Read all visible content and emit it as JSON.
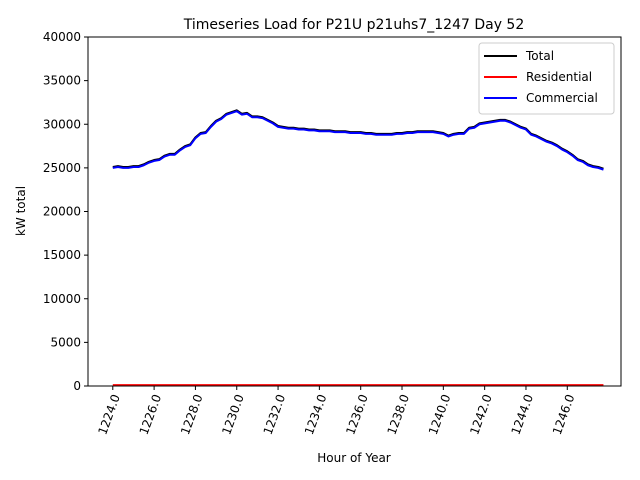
{
  "chart_data": {
    "type": "line",
    "title": "Timeseries Load for P21U p21uhs7_1247  Day 52",
    "xlabel": "Hour of Year",
    "ylabel": "kW total",
    "xlim": [
      1222.8,
      1248.6
    ],
    "ylim": [
      0,
      40000
    ],
    "xticks": [
      1224,
      1226,
      1228,
      1230,
      1232,
      1234,
      1236,
      1238,
      1240,
      1242,
      1244,
      1246
    ],
    "xtick_labels": [
      "1224.0",
      "1226.0",
      "1228.0",
      "1230.0",
      "1232.0",
      "1234.0",
      "1236.0",
      "1238.0",
      "1240.0",
      "1242.0",
      "1244.0",
      "1246.0"
    ],
    "yticks": [
      0,
      5000,
      10000,
      15000,
      20000,
      25000,
      30000,
      35000,
      40000
    ],
    "ytick_labels": [
      "0",
      "5000",
      "10000",
      "15000",
      "20000",
      "25000",
      "30000",
      "35000",
      "40000"
    ],
    "legend_position": "upper-right",
    "x": [
      1224.0,
      1224.25,
      1224.5,
      1224.75,
      1225.0,
      1225.25,
      1225.5,
      1225.75,
      1226.0,
      1226.25,
      1226.5,
      1226.75,
      1227.0,
      1227.25,
      1227.5,
      1227.75,
      1228.0,
      1228.25,
      1228.5,
      1228.75,
      1229.0,
      1229.25,
      1229.5,
      1229.75,
      1230.0,
      1230.25,
      1230.5,
      1230.75,
      1231.0,
      1231.25,
      1231.5,
      1231.75,
      1232.0,
      1232.25,
      1232.5,
      1232.75,
      1233.0,
      1233.25,
      1233.5,
      1233.75,
      1234.0,
      1234.25,
      1234.5,
      1234.75,
      1235.0,
      1235.25,
      1235.5,
      1235.75,
      1236.0,
      1236.25,
      1236.5,
      1236.75,
      1237.0,
      1237.25,
      1237.5,
      1237.75,
      1238.0,
      1238.25,
      1238.5,
      1238.75,
      1239.0,
      1239.25,
      1239.5,
      1239.75,
      1240.0,
      1240.25,
      1240.5,
      1240.75,
      1241.0,
      1241.25,
      1241.5,
      1241.75,
      1242.0,
      1242.25,
      1242.5,
      1242.75,
      1243.0,
      1243.25,
      1243.5,
      1243.75,
      1244.0,
      1244.25,
      1244.5,
      1244.75,
      1245.0,
      1245.25,
      1245.5,
      1245.75,
      1246.0,
      1246.25,
      1246.5,
      1246.75,
      1247.0,
      1247.25,
      1247.5,
      1247.75
    ],
    "series": [
      {
        "name": "Total",
        "color": "#000000",
        "values": [
          25100,
          25200,
          25100,
          25100,
          25200,
          25200,
          25400,
          25700,
          25900,
          26000,
          26400,
          26600,
          26600,
          27100,
          27500,
          27700,
          28500,
          29000,
          29100,
          29800,
          30400,
          30700,
          31200,
          31400,
          31600,
          31200,
          31300,
          30900,
          30900,
          30800,
          30500,
          30200,
          29800,
          29700,
          29600,
          29600,
          29500,
          29500,
          29400,
          29400,
          29300,
          29300,
          29300,
          29200,
          29200,
          29200,
          29100,
          29100,
          29100,
          29000,
          29000,
          28900,
          28900,
          28900,
          28900,
          29000,
          29000,
          29100,
          29100,
          29200,
          29200,
          29200,
          29200,
          29100,
          29000,
          28700,
          28900,
          29000,
          29000,
          29600,
          29700,
          30100,
          30200,
          30300,
          30400,
          30500,
          30500,
          30300,
          30000,
          29700,
          29500,
          28900,
          28700,
          28400,
          28100,
          27900,
          27600,
          27200,
          26900,
          26500,
          26000,
          25800,
          25400,
          25200,
          25100,
          24900
        ]
      },
      {
        "name": "Residential",
        "color": "#ff0000",
        "values": [
          100,
          100,
          100,
          100,
          100,
          100,
          100,
          100,
          100,
          100,
          100,
          100,
          100,
          100,
          100,
          100,
          100,
          100,
          100,
          100,
          100,
          100,
          100,
          100,
          100,
          100,
          100,
          100,
          100,
          100,
          100,
          100,
          100,
          100,
          100,
          100,
          100,
          100,
          100,
          100,
          100,
          100,
          100,
          100,
          100,
          100,
          100,
          100,
          100,
          100,
          100,
          100,
          100,
          100,
          100,
          100,
          100,
          100,
          100,
          100,
          100,
          100,
          100,
          100,
          100,
          100,
          100,
          100,
          100,
          100,
          100,
          100,
          100,
          100,
          100,
          100,
          100,
          100,
          100,
          100,
          100,
          100,
          100,
          100,
          100,
          100,
          100,
          100,
          100,
          100,
          100,
          100,
          100,
          100,
          100,
          100
        ]
      },
      {
        "name": "Commercial",
        "color": "#0000ff",
        "values": [
          25000,
          25100,
          25000,
          25000,
          25100,
          25100,
          25300,
          25600,
          25800,
          25900,
          26300,
          26500,
          26500,
          27000,
          27400,
          27600,
          28400,
          28900,
          29000,
          29700,
          30300,
          30600,
          31100,
          31300,
          31500,
          31100,
          31200,
          30800,
          30800,
          30700,
          30400,
          30100,
          29700,
          29600,
          29500,
          29500,
          29400,
          29400,
          29300,
          29300,
          29200,
          29200,
          29200,
          29100,
          29100,
          29100,
          29000,
          29000,
          29000,
          28900,
          28900,
          28800,
          28800,
          28800,
          28800,
          28900,
          28900,
          29000,
          29000,
          29100,
          29100,
          29100,
          29100,
          29000,
          28900,
          28600,
          28800,
          28900,
          28900,
          29500,
          29600,
          30000,
          30100,
          30200,
          30300,
          30400,
          30400,
          30200,
          29900,
          29600,
          29400,
          28800,
          28600,
          28300,
          28000,
          27800,
          27500,
          27100,
          26800,
          26400,
          25900,
          25700,
          25300,
          25100,
          25000,
          24800
        ]
      }
    ]
  }
}
